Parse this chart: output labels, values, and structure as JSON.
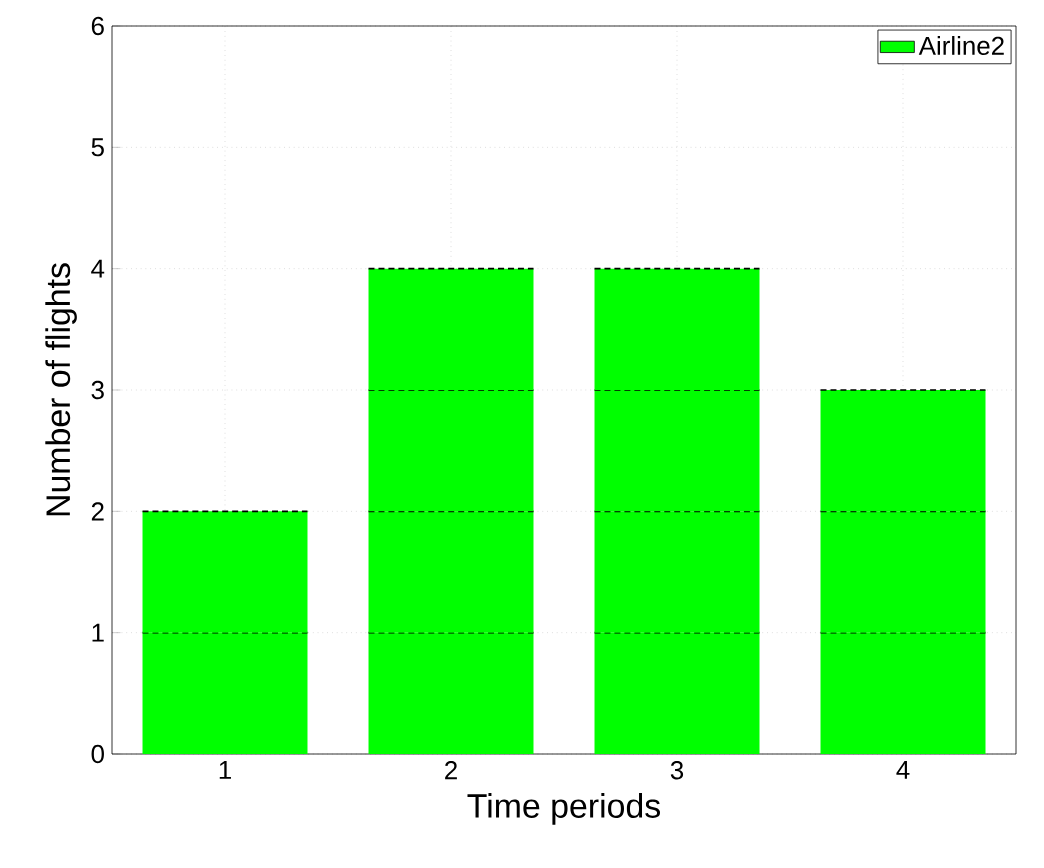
{
  "chart_data": {
    "type": "bar",
    "stacked": true,
    "xlabel": "Time periods",
    "ylabel": "Number of flights",
    "categories": [
      "1",
      "2",
      "3",
      "4"
    ],
    "series": [
      {
        "name": "Airline2",
        "color": "#00ff00",
        "values": [
          1,
          1,
          1,
          1
        ]
      },
      {
        "color": "#00ff00",
        "values": [
          1,
          1,
          1,
          1
        ]
      },
      {
        "color": "#00ff00",
        "values": [
          null,
          1,
          1,
          1
        ]
      },
      {
        "color": "#00ff00",
        "values": [
          null,
          1,
          1,
          null
        ]
      }
    ],
    "line_style": "dashed",
    "ylim": [
      0,
      6
    ],
    "yticks": [
      0,
      1,
      2,
      3,
      4,
      5,
      6
    ],
    "grid": true,
    "legend": "top right"
  }
}
